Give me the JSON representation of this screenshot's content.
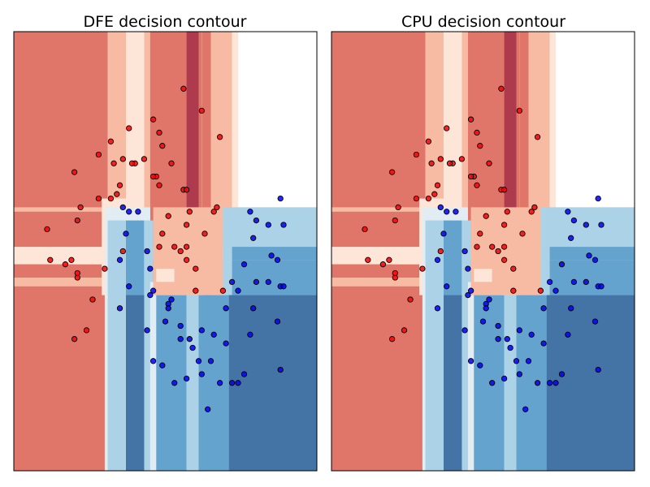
{
  "colors": {
    "red_dark": "#ad3b4d",
    "red": "#e0766a",
    "red_light": "#f7bba3",
    "red_pale": "#fde5d8",
    "blue_pale": "#e1ecf3",
    "blue_light": "#abd2e6",
    "blue": "#65a3cf",
    "blue_dark": "#4473a5",
    "point_red": "#ff0000",
    "point_blue": "#0000ff"
  },
  "chart_data": [
    {
      "type": "contour",
      "title": "DFE decision contour",
      "xlabel": "",
      "ylabel": "",
      "ticks": "none",
      "xlim": [
        0,
        1
      ],
      "ylim": [
        0,
        1
      ],
      "regions": [
        {
          "x": [
            0.0,
            0.31
          ],
          "y": [
            0.0,
            1.0
          ],
          "c": "red"
        },
        {
          "x": [
            0.31,
            0.37
          ],
          "y": [
            0.0,
            1.0
          ],
          "c": "red_light"
        },
        {
          "x": [
            0.37,
            0.43
          ],
          "y": [
            0.0,
            1.0
          ],
          "c": "red_pale"
        },
        {
          "x": [
            0.43,
            0.45
          ],
          "y": [
            0.0,
            1.0
          ],
          "c": "red_light"
        },
        {
          "x": [
            0.45,
            0.62
          ],
          "y": [
            0.0,
            1.0
          ],
          "c": "red"
        },
        {
          "x": [
            0.57,
            0.61
          ],
          "y": [
            0.0,
            1.0
          ],
          "c": "red_dark"
        },
        {
          "x": [
            0.62,
            0.65
          ],
          "y": [
            0.0,
            1.0
          ],
          "c": "red"
        },
        {
          "x": [
            0.65,
            0.72
          ],
          "y": [
            0.0,
            1.0
          ],
          "c": "red_light"
        },
        {
          "x": [
            0.72,
            0.74
          ],
          "y": [
            0.0,
            1.0
          ],
          "c": "red_pale"
        },
        {
          "x": [
            0.74,
            1.0
          ],
          "y": [
            0.0,
            0.6
          ],
          "c": "blue_pale"
        },
        {
          "x": [
            0.0,
            0.31
          ],
          "y": [
            0.42,
            0.6
          ],
          "c": "red_light"
        },
        {
          "x": [
            0.0,
            0.29
          ],
          "y": [
            0.44,
            0.59
          ],
          "c": "red"
        },
        {
          "x": [
            0.0,
            0.31
          ],
          "y": [
            0.47,
            0.49
          ],
          "c": "red_pale"
        },
        {
          "x": [
            0.0,
            0.2
          ],
          "y": [
            0.44,
            0.47
          ],
          "c": "red"
        },
        {
          "x": [
            0.0,
            1.0
          ],
          "y": [
            0.48,
            0.51
          ],
          "c": "red_pale"
        },
        {
          "x": [
            0.29,
            0.39
          ],
          "y": [
            0.4,
            0.62
          ],
          "c": "red_pale"
        },
        {
          "x": [
            0.3,
            0.45
          ],
          "y": [
            0.0,
            0.6
          ],
          "c": "blue_pale"
        },
        {
          "x": [
            0.31,
            0.37
          ],
          "y": [
            0.0,
            0.57
          ],
          "c": "blue_light"
        },
        {
          "x": [
            0.37,
            0.43
          ],
          "y": [
            0.0,
            0.57
          ],
          "c": "blue"
        },
        {
          "x": [
            0.43,
            0.46
          ],
          "y": [
            0.0,
            0.57
          ],
          "c": "blue_light"
        },
        {
          "x": [
            0.45,
            0.62
          ],
          "y": [
            0.0,
            0.43
          ],
          "c": "blue_pale"
        },
        {
          "x": [
            0.47,
            0.57
          ],
          "y": [
            0.0,
            0.4
          ],
          "c": "blue"
        },
        {
          "x": [
            0.61,
            0.74
          ],
          "y": [
            0.0,
            0.4
          ],
          "c": "blue"
        },
        {
          "x": [
            0.57,
            0.61
          ],
          "y": [
            0.0,
            0.4
          ],
          "c": "blue_light"
        },
        {
          "x": [
            0.46,
            0.69
          ],
          "y": [
            0.4,
            0.6
          ],
          "c": "red_light"
        },
        {
          "x": [
            0.47,
            0.53
          ],
          "y": [
            0.43,
            0.46
          ],
          "c": "red_pale"
        },
        {
          "x": [
            0.53,
            0.63
          ],
          "y": [
            0.4,
            0.46
          ],
          "c": "red_light"
        },
        {
          "x": [
            0.69,
            1.0
          ],
          "y": [
            0.4,
            0.6
          ],
          "c": "blue_light"
        },
        {
          "x": [
            0.72,
            1.0
          ],
          "y": [
            0.4,
            0.48
          ],
          "c": "blue"
        },
        {
          "x": [
            0.72,
            1.0
          ],
          "y": [
            0.48,
            0.51
          ],
          "c": "blue"
        },
        {
          "x": [
            0.71,
            1.0
          ],
          "y": [
            0.0,
            0.4
          ],
          "c": "blue_dark"
        },
        {
          "x": [
            0.37,
            0.43
          ],
          "y": [
            0.0,
            0.4
          ],
          "c": "blue_dark"
        }
      ],
      "points_red": [
        [
          0.56,
          0.87
        ],
        [
          0.62,
          0.82
        ],
        [
          0.46,
          0.8
        ],
        [
          0.38,
          0.78
        ],
        [
          0.48,
          0.77
        ],
        [
          0.68,
          0.76
        ],
        [
          0.32,
          0.75
        ],
        [
          0.49,
          0.74
        ],
        [
          0.28,
          0.72
        ],
        [
          0.36,
          0.71
        ],
        [
          0.4,
          0.7
        ],
        [
          0.33,
          0.7
        ],
        [
          0.43,
          0.71
        ],
        [
          0.52,
          0.7
        ],
        [
          0.39,
          0.7
        ],
        [
          0.2,
          0.68
        ],
        [
          0.47,
          0.67
        ],
        [
          0.48,
          0.65
        ],
        [
          0.46,
          0.67
        ],
        [
          0.35,
          0.65
        ],
        [
          0.56,
          0.64
        ],
        [
          0.57,
          0.64
        ],
        [
          0.34,
          0.63
        ],
        [
          0.28,
          0.62
        ],
        [
          0.32,
          0.62
        ],
        [
          0.22,
          0.6
        ],
        [
          0.58,
          0.59
        ],
        [
          0.67,
          0.6
        ],
        [
          0.51,
          0.58
        ],
        [
          0.66,
          0.59
        ],
        [
          0.21,
          0.57
        ],
        [
          0.57,
          0.56
        ],
        [
          0.48,
          0.51
        ],
        [
          0.53,
          0.51
        ],
        [
          0.55,
          0.5
        ],
        [
          0.57,
          0.51
        ],
        [
          0.63,
          0.54
        ],
        [
          0.49,
          0.54
        ],
        [
          0.36,
          0.5
        ],
        [
          0.11,
          0.55
        ],
        [
          0.12,
          0.48
        ],
        [
          0.17,
          0.47
        ],
        [
          0.19,
          0.48
        ],
        [
          0.21,
          0.44
        ],
        [
          0.21,
          0.45
        ],
        [
          0.3,
          0.46
        ],
        [
          0.6,
          0.46
        ],
        [
          0.57,
          0.48
        ],
        [
          0.6,
          0.41
        ],
        [
          0.26,
          0.39
        ],
        [
          0.24,
          0.32
        ],
        [
          0.2,
          0.3
        ],
        [
          0.69,
          0.41
        ]
      ],
      "points_blue": [
        [
          0.78,
          0.59
        ],
        [
          0.88,
          0.62
        ],
        [
          0.84,
          0.56
        ],
        [
          0.89,
          0.56
        ],
        [
          0.8,
          0.57
        ],
        [
          0.79,
          0.53
        ],
        [
          0.76,
          0.47
        ],
        [
          0.85,
          0.49
        ],
        [
          0.87,
          0.48
        ],
        [
          0.36,
          0.6
        ],
        [
          0.38,
          0.59
        ],
        [
          0.41,
          0.59
        ],
        [
          0.37,
          0.54
        ],
        [
          0.44,
          0.5
        ],
        [
          0.35,
          0.48
        ],
        [
          0.45,
          0.46
        ],
        [
          0.8,
          0.43
        ],
        [
          0.84,
          0.43
        ],
        [
          0.88,
          0.42
        ],
        [
          0.89,
          0.42
        ],
        [
          0.72,
          0.43
        ],
        [
          0.74,
          0.41
        ],
        [
          0.38,
          0.42
        ],
        [
          0.45,
          0.4
        ],
        [
          0.46,
          0.41
        ],
        [
          0.52,
          0.39
        ],
        [
          0.51,
          0.38
        ],
        [
          0.51,
          0.37
        ],
        [
          0.7,
          0.37
        ],
        [
          0.79,
          0.37
        ],
        [
          0.35,
          0.37
        ],
        [
          0.5,
          0.34
        ],
        [
          0.55,
          0.33
        ],
        [
          0.55,
          0.3
        ],
        [
          0.58,
          0.3
        ],
        [
          0.62,
          0.32
        ],
        [
          0.66,
          0.31
        ],
        [
          0.7,
          0.29
        ],
        [
          0.78,
          0.31
        ],
        [
          0.87,
          0.34
        ],
        [
          0.44,
          0.32
        ],
        [
          0.59,
          0.28
        ],
        [
          0.65,
          0.25
        ],
        [
          0.61,
          0.25
        ],
        [
          0.68,
          0.2
        ],
        [
          0.76,
          0.22
        ],
        [
          0.88,
          0.23
        ],
        [
          0.74,
          0.2
        ],
        [
          0.49,
          0.24
        ],
        [
          0.46,
          0.25
        ],
        [
          0.57,
          0.21
        ],
        [
          0.62,
          0.22
        ],
        [
          0.72,
          0.2
        ],
        [
          0.64,
          0.14
        ],
        [
          0.53,
          0.2
        ]
      ]
    },
    {
      "type": "contour",
      "title": "CPU decision contour",
      "xlabel": "",
      "ylabel": "",
      "ticks": "none",
      "xlim": [
        0,
        1
      ],
      "ylim": [
        0,
        1
      ],
      "same_as_previous": true
    }
  ]
}
